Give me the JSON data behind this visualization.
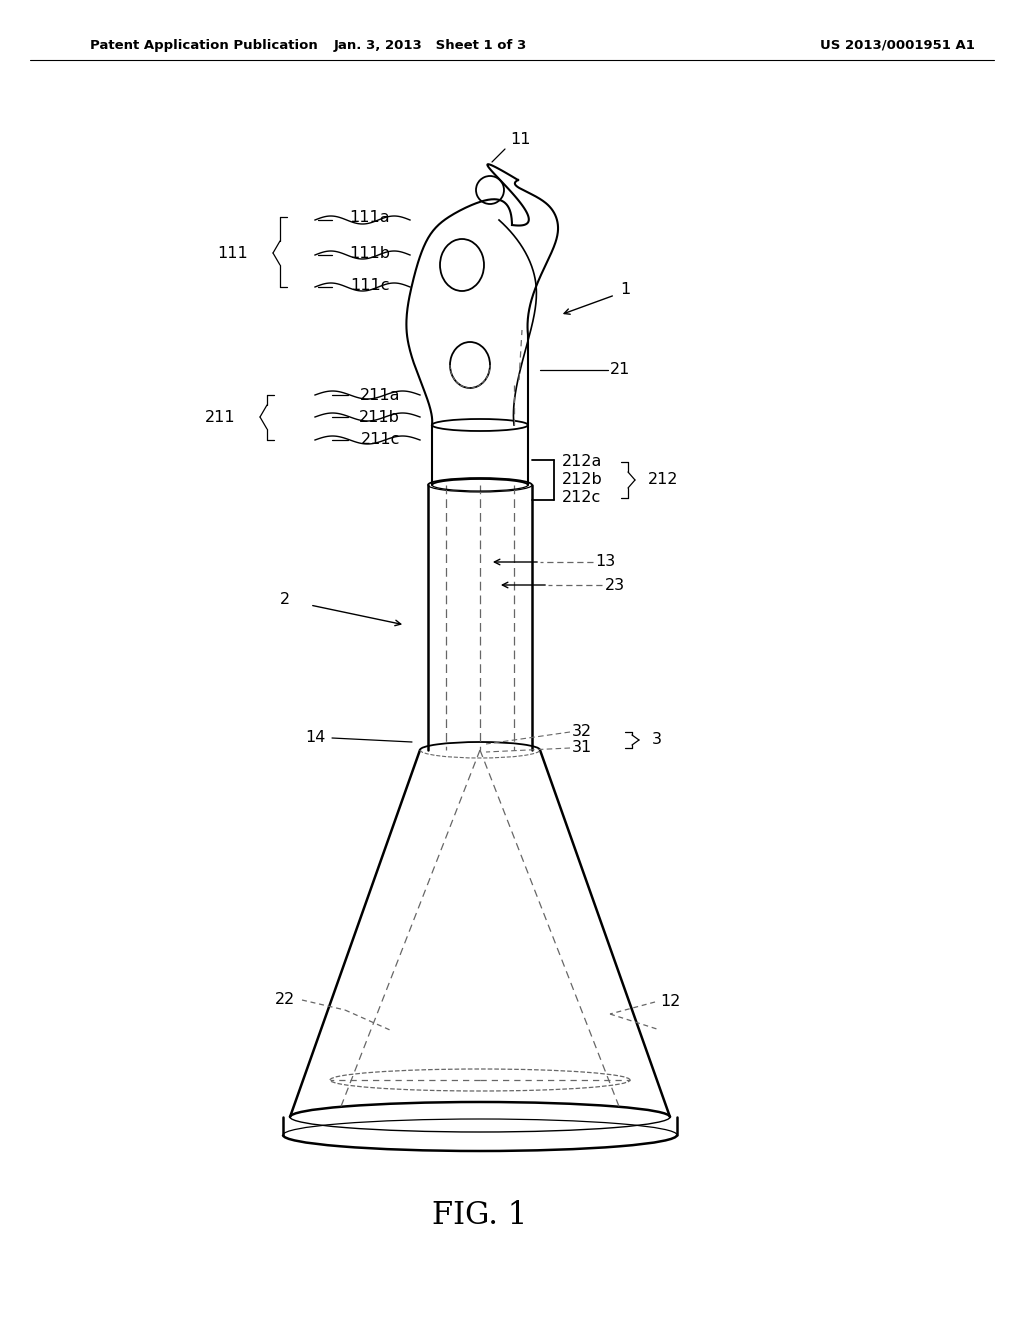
{
  "background_color": "#ffffff",
  "line_color": "#000000",
  "dashed_color": "#666666",
  "header_left": "Patent Application Publication",
  "header_center": "Jan. 3, 2013   Sheet 1 of 3",
  "header_right": "US 2013/0001951 A1",
  "figure_label": "FIG. 1"
}
